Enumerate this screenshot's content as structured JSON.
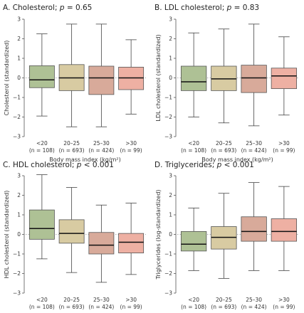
{
  "chart_data": [
    {
      "type": "boxplot",
      "panel": "A.",
      "title": "Cholesterol; p = 0.65",
      "title_plain": "Cholesterol; ",
      "pval": "= 0.65",
      "ylabel": "Cholesterol (standardized)",
      "xlabel": "Body mass index (kg/m²)",
      "ylim": [
        -3,
        3
      ],
      "yticks": [
        "−3",
        "−2",
        "−1",
        "0",
        "1",
        "2",
        "3"
      ],
      "categories": [
        "<20",
        "20–25",
        "25–30",
        ">30"
      ],
      "counts": [
        "(n = 108)",
        "(n = 693)",
        "(n = 424)",
        "(n = 99)"
      ],
      "colors": [
        "#aec195",
        "#d8cba2",
        "#d8aa9a",
        "#eeb0a3"
      ],
      "boxes": [
        {
          "whislo": -1.95,
          "q1": -0.5,
          "med": -0.1,
          "q3": 0.62,
          "whishi": 2.25
        },
        {
          "whislo": -2.5,
          "q1": -0.65,
          "med": 0.0,
          "q3": 0.68,
          "whishi": 2.75
        },
        {
          "whislo": -2.5,
          "q1": -0.85,
          "med": 0.0,
          "q3": 0.6,
          "whishi": 2.75
        },
        {
          "whislo": -1.85,
          "q1": -0.6,
          "med": 0.0,
          "q3": 0.55,
          "whishi": 1.95
        }
      ]
    },
    {
      "type": "boxplot",
      "panel": "B.",
      "title": "LDL cholesterol; p = 0.83",
      "title_plain": "LDL cholesterol; ",
      "pval": "= 0.83",
      "ylabel": "LDL cholesterol (standardized)",
      "xlabel": "Body mass index (kg/m²)",
      "ylim": [
        -3,
        3
      ],
      "yticks": [
        "−3",
        "−2",
        "−1",
        "0",
        "1",
        "2",
        "3"
      ],
      "categories": [
        "<20",
        "20–25",
        "25–30",
        ">30"
      ],
      "counts": [
        "(n = 108)",
        "(n = 693)",
        "(n = 424)",
        "(n = 99)"
      ],
      "colors": [
        "#aec195",
        "#d8cba2",
        "#d8aa9a",
        "#eeb0a3"
      ],
      "boxes": [
        {
          "whislo": -2.0,
          "q1": -0.65,
          "med": -0.2,
          "q3": 0.6,
          "whishi": 2.3
        },
        {
          "whislo": -2.3,
          "q1": -0.65,
          "med": -0.05,
          "q3": 0.6,
          "whishi": 2.5
        },
        {
          "whislo": -2.45,
          "q1": -0.75,
          "med": 0.0,
          "q3": 0.65,
          "whishi": 2.75
        },
        {
          "whislo": -1.9,
          "q1": -0.55,
          "med": 0.1,
          "q3": 0.5,
          "whishi": 2.1
        }
      ]
    },
    {
      "type": "boxplot",
      "panel": "C.",
      "title": "HDL cholesterol; p < 0.001",
      "title_plain": "HDL cholesterol; ",
      "pval": "< 0.001",
      "ylabel": "HDL cholesterol (standardized)",
      "xlabel": "Body mass index (kg/m²)",
      "ylim": [
        -3,
        3
      ],
      "yticks": [
        "−3",
        "−2",
        "−1",
        "0",
        "1",
        "2",
        "3"
      ],
      "categories": [
        "<20",
        "20–25",
        "25–30",
        ">30"
      ],
      "counts": [
        "(n = 108)",
        "(n = 693)",
        "(n = 424)",
        "(n = 99)"
      ],
      "colors": [
        "#aec195",
        "#d8cba2",
        "#d8aa9a",
        "#eeb0a3"
      ],
      "boxes": [
        {
          "whislo": -1.25,
          "q1": -0.25,
          "med": 0.3,
          "q3": 1.25,
          "whishi": 3.05
        },
        {
          "whislo": -1.95,
          "q1": -0.45,
          "med": 0.05,
          "q3": 0.75,
          "whishi": 2.4
        },
        {
          "whislo": -2.45,
          "q1": -1.0,
          "med": -0.55,
          "q3": 0.1,
          "whishi": 1.5
        },
        {
          "whislo": -2.05,
          "q1": -0.95,
          "med": -0.4,
          "q3": 0.05,
          "whishi": 1.6
        }
      ]
    },
    {
      "type": "boxplot",
      "panel": "D.",
      "title": "Triglycerides; p < 0.001",
      "title_plain": "Triglycerides; ",
      "pval": "< 0.001",
      "ylabel": "Triglycerides (log-standardized)",
      "xlabel": "Body mass index (kg/m²)",
      "ylim": [
        -3,
        3
      ],
      "yticks": [
        "−3",
        "−2",
        "−1",
        "0",
        "1",
        "2",
        "3"
      ],
      "categories": [
        "<20",
        "20–25",
        "25–30",
        ">30"
      ],
      "counts": [
        "(n = 108)",
        "(n = 693)",
        "(n = 424)",
        "(n = 99)"
      ],
      "colors": [
        "#aec195",
        "#d8cba2",
        "#d8aa9a",
        "#eeb0a3"
      ],
      "boxes": [
        {
          "whislo": -1.85,
          "q1": -0.85,
          "med": -0.5,
          "q3": 0.15,
          "whishi": 1.35
        },
        {
          "whislo": -2.25,
          "q1": -0.75,
          "med": -0.15,
          "q3": 0.4,
          "whishi": 2.1
        },
        {
          "whislo": -1.85,
          "q1": -0.35,
          "med": 0.15,
          "q3": 0.9,
          "whishi": 2.65
        },
        {
          "whislo": -1.85,
          "q1": -0.35,
          "med": 0.15,
          "q3": 0.8,
          "whishi": 2.45
        }
      ]
    }
  ]
}
